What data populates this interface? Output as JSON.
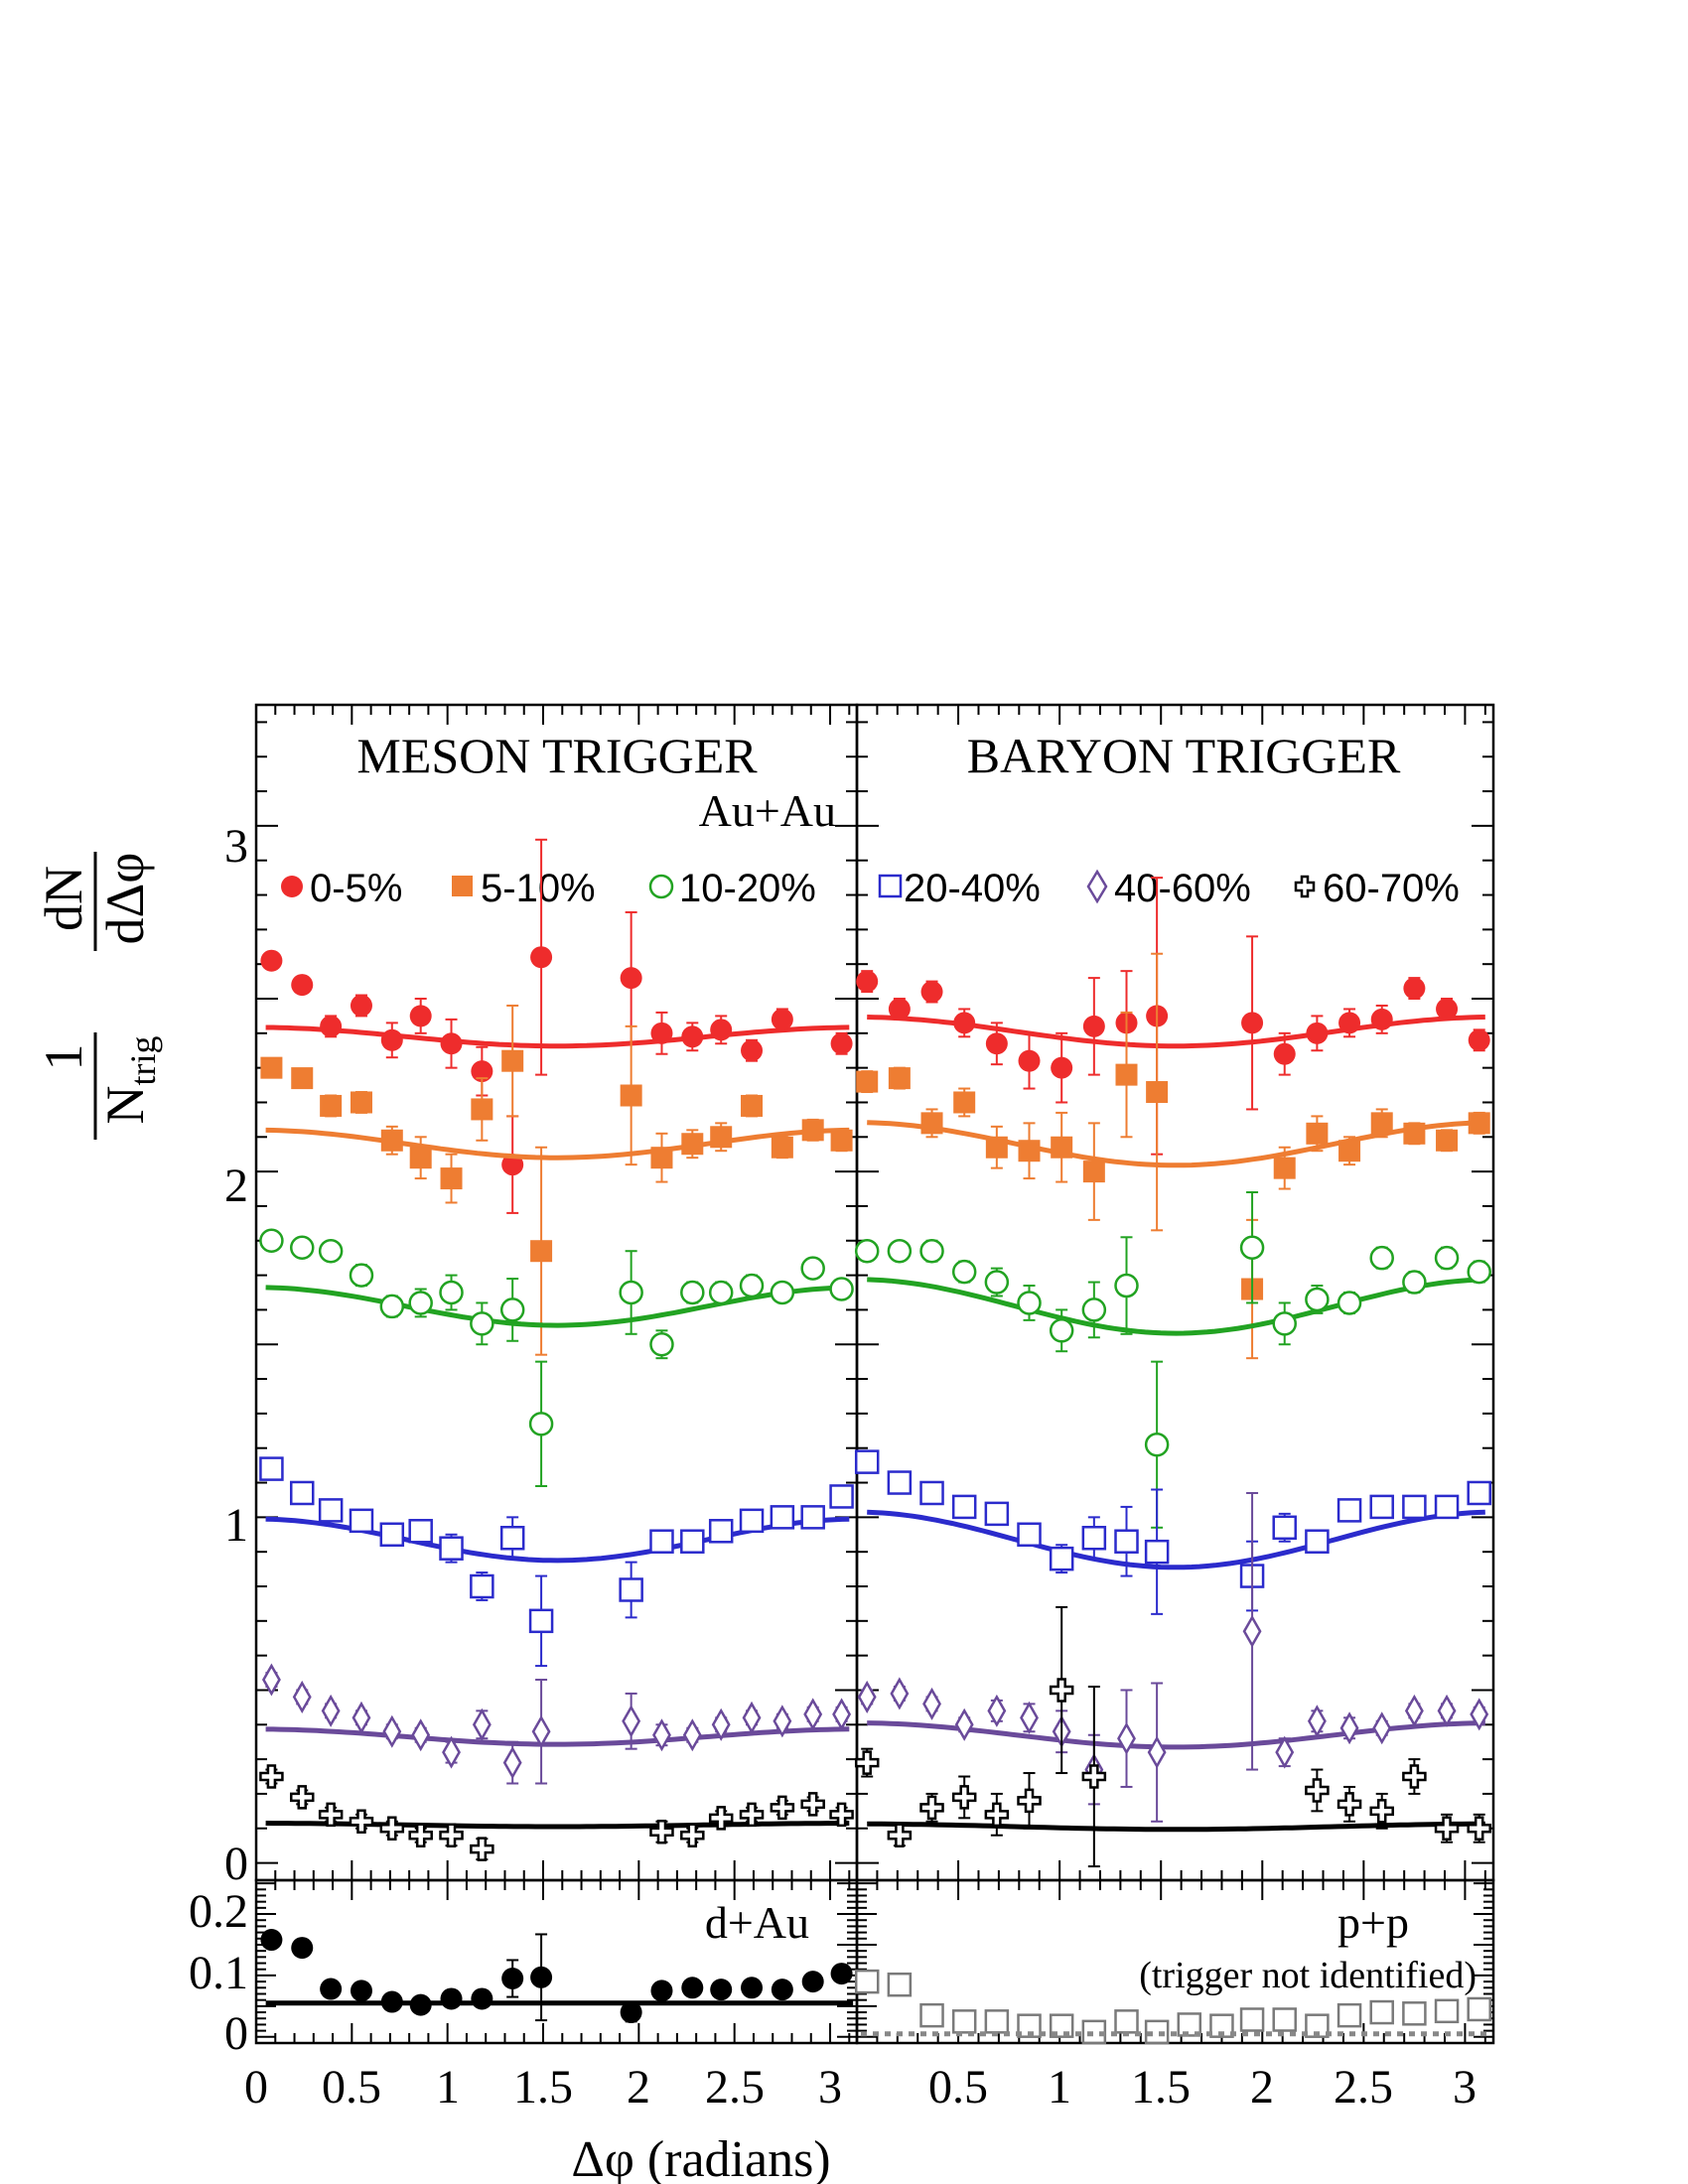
{
  "figure": {
    "y_axis_label": {
      "num1": "1",
      "den1": "N",
      "den1_sub": "trig",
      "num2": "dN",
      "den2": "dΔφ"
    },
    "x_axis_label": "Δφ (radians)",
    "main_y_ticks": [
      "0",
      "1",
      "2",
      "3"
    ],
    "small_y_ticks": [
      "0",
      "0.1",
      "0.2"
    ],
    "x_ticks_left": [
      "0",
      "0.5",
      "1",
      "1.5",
      "2",
      "2.5",
      "3"
    ],
    "x_ticks_right": [
      "0.5",
      "1",
      "1.5",
      "2",
      "2.5",
      "3"
    ]
  },
  "panels": {
    "meson_title": "MESON TRIGGER",
    "baryon_title": "BARYON TRIGGER",
    "auau_label": "Au+Au",
    "dau_label": "d+Au",
    "pp_label": "p+p",
    "pp_sublabel": "(trigger not identified)"
  },
  "legend": [
    {
      "label": "0-5%",
      "color": "#ee2c2c",
      "marker": "filled-circle"
    },
    {
      "label": "5-10%",
      "color": "#ee7d32",
      "marker": "filled-square"
    },
    {
      "label": "10-20%",
      "color": "#22a322",
      "marker": "open-circle"
    },
    {
      "label": "20-40%",
      "color": "#2b2bcc",
      "marker": "open-square"
    },
    {
      "label": "40-60%",
      "color": "#6a4a9a",
      "marker": "open-diamond"
    },
    {
      "label": "60-70%",
      "color": "#000000",
      "marker": "open-cross"
    }
  ],
  "chart_data": [
    {
      "type": "scatter",
      "panel": "meson-auau",
      "title": "MESON TRIGGER",
      "xlabel": "Δφ (radians)",
      "ylabel": "1/N_trig dN/dΔφ",
      "xlim": [
        0,
        3.14
      ],
      "ylim": [
        -0.05,
        3.35
      ],
      "x": [
        0.08,
        0.24,
        0.39,
        0.55,
        0.71,
        0.86,
        1.02,
        1.18,
        1.34,
        1.49,
        1.96,
        2.12,
        2.28,
        2.43,
        2.59,
        2.75,
        2.91,
        3.06
      ],
      "series": [
        {
          "name": "0-5%",
          "color": "#ee2c2c",
          "marker": "filled-circle",
          "values": [
            2.61,
            2.54,
            2.42,
            2.48,
            2.38,
            2.45,
            2.37,
            2.29,
            2.02,
            2.62,
            2.56,
            2.4,
            2.39,
            2.41,
            2.35,
            2.44,
            null,
            2.37
          ],
          "errors": [
            0.02,
            0.02,
            0.03,
            0.03,
            0.05,
            0.05,
            0.07,
            0.07,
            0.14,
            0.34,
            0.19,
            0.06,
            0.04,
            0.04,
            0.03,
            0.03,
            null,
            0.03
          ],
          "fit": {
            "a": 2.39,
            "b": 0.027
          }
        },
        {
          "name": "5-10%",
          "color": "#ee7d32",
          "marker": "filled-square",
          "values": [
            2.3,
            2.27,
            2.19,
            2.2,
            2.09,
            2.04,
            1.98,
            2.18,
            2.32,
            1.77,
            2.22,
            2.04,
            2.08,
            2.1,
            2.19,
            2.07,
            2.12,
            2.09
          ],
          "errors": [
            0.02,
            0.02,
            0.03,
            0.03,
            0.04,
            0.06,
            0.07,
            0.09,
            0.16,
            0.3,
            0.2,
            0.07,
            0.04,
            0.04,
            0.03,
            0.03,
            0.03,
            0.03
          ],
          "fit": {
            "a": 2.08,
            "b": 0.04
          }
        },
        {
          "name": "10-20%",
          "color": "#22a322",
          "marker": "open-circle",
          "values": [
            1.8,
            1.78,
            1.77,
            1.7,
            1.61,
            1.62,
            1.65,
            1.56,
            1.6,
            1.27,
            1.65,
            1.5,
            1.65,
            1.65,
            1.67,
            1.65,
            1.72,
            1.66
          ],
          "errors": [
            0.02,
            0.02,
            0.02,
            0.03,
            0.03,
            0.04,
            0.05,
            0.06,
            0.09,
            0.18,
            0.12,
            0.04,
            0.03,
            0.03,
            0.03,
            0.02,
            0.02,
            0.02
          ],
          "fit": {
            "a": 1.61,
            "b": 0.055
          }
        },
        {
          "name": "20-40%",
          "color": "#2b2bcc",
          "marker": "open-square",
          "values": [
            1.14,
            1.07,
            1.02,
            0.99,
            0.95,
            0.96,
            0.91,
            0.8,
            0.94,
            0.7,
            0.79,
            0.93,
            0.93,
            0.96,
            0.99,
            1.0,
            1.0,
            1.06
          ],
          "errors": [
            0.02,
            0.02,
            0.02,
            0.02,
            0.02,
            0.03,
            0.04,
            0.04,
            0.06,
            0.13,
            0.08,
            0.03,
            0.02,
            0.02,
            0.02,
            0.02,
            0.02,
            0.02
          ],
          "fit": {
            "a": 0.935,
            "b": 0.06
          }
        },
        {
          "name": "40-60%",
          "color": "#6a4a9a",
          "marker": "open-diamond",
          "values": [
            0.53,
            0.48,
            0.44,
            0.42,
            0.38,
            0.37,
            0.32,
            0.4,
            0.29,
            0.38,
            0.41,
            0.37,
            0.37,
            0.4,
            0.42,
            0.41,
            0.43,
            0.43
          ],
          "errors": [
            0.02,
            0.02,
            0.02,
            0.02,
            0.02,
            0.02,
            0.03,
            0.04,
            0.06,
            0.15,
            0.08,
            0.03,
            0.02,
            0.02,
            0.02,
            0.02,
            0.02,
            0.02
          ],
          "fit": {
            "a": 0.365,
            "b": 0.022
          }
        },
        {
          "name": "60-70%",
          "color": "#000000",
          "marker": "open-cross",
          "values": [
            0.25,
            0.19,
            0.14,
            0.12,
            0.1,
            0.08,
            0.08,
            0.04,
            null,
            null,
            null,
            0.09,
            0.08,
            0.13,
            0.14,
            0.16,
            0.17,
            0.14
          ],
          "errors": [
            0.02,
            0.02,
            0.02,
            0.02,
            0.02,
            0.02,
            0.03,
            0.03,
            null,
            null,
            null,
            0.03,
            0.02,
            0.02,
            0.02,
            0.02,
            0.02,
            0.02
          ],
          "fit": {
            "a": 0.11,
            "b": 0.005
          }
        }
      ]
    },
    {
      "type": "scatter",
      "panel": "baryon-auau",
      "title": "BARYON TRIGGER",
      "xlabel": "Δφ (radians)",
      "xlim": [
        0,
        3.14
      ],
      "ylim": [
        -0.05,
        3.35
      ],
      "x": [
        0.05,
        0.21,
        0.37,
        0.53,
        0.69,
        0.85,
        1.01,
        1.17,
        1.33,
        1.48,
        1.95,
        2.11,
        2.27,
        2.43,
        2.59,
        2.75,
        2.91,
        3.07
      ],
      "series": [
        {
          "name": "0-5%",
          "color": "#ee2c2c",
          "marker": "filled-circle",
          "values": [
            2.55,
            2.47,
            2.52,
            2.43,
            2.37,
            2.32,
            2.3,
            2.42,
            2.43,
            2.45,
            2.43,
            2.34,
            2.4,
            2.43,
            2.44,
            2.53,
            2.47,
            2.38
          ],
          "errors": [
            0.03,
            0.03,
            0.03,
            0.04,
            0.06,
            0.08,
            0.1,
            0.14,
            0.15,
            0.4,
            0.25,
            0.06,
            0.05,
            0.04,
            0.04,
            0.03,
            0.03,
            0.03
          ],
          "fit": {
            "a": 2.405,
            "b": 0.042
          }
        },
        {
          "name": "5-10%",
          "color": "#ee7d32",
          "marker": "filled-square",
          "values": [
            2.26,
            2.27,
            2.14,
            2.2,
            2.07,
            2.06,
            2.07,
            2.0,
            2.28,
            2.23,
            1.66,
            2.01,
            2.11,
            2.06,
            2.14,
            2.11,
            2.09,
            2.14
          ],
          "errors": [
            0.03,
            0.03,
            0.04,
            0.04,
            0.06,
            0.08,
            0.1,
            0.14,
            0.18,
            0.4,
            0.2,
            0.06,
            0.05,
            0.04,
            0.04,
            0.03,
            0.03,
            0.03
          ],
          "fit": {
            "a": 2.08,
            "b": 0.062
          }
        },
        {
          "name": "10-20%",
          "color": "#22a322",
          "marker": "open-circle",
          "values": [
            1.77,
            1.77,
            1.77,
            1.71,
            1.68,
            1.62,
            1.54,
            1.6,
            1.67,
            1.21,
            1.78,
            1.56,
            1.63,
            1.62,
            1.75,
            1.68,
            1.75,
            1.71
          ],
          "errors": [
            0.02,
            0.02,
            0.03,
            0.03,
            0.04,
            0.05,
            0.06,
            0.08,
            0.14,
            0.24,
            0.16,
            0.06,
            0.04,
            0.03,
            0.03,
            0.03,
            0.03,
            0.03
          ],
          "fit": {
            "a": 1.61,
            "b": 0.078
          }
        },
        {
          "name": "20-40%",
          "color": "#2b2bcc",
          "marker": "open-square",
          "values": [
            1.16,
            1.1,
            1.07,
            1.03,
            1.01,
            0.95,
            0.88,
            0.94,
            0.93,
            0.9,
            0.83,
            0.97,
            0.93,
            1.02,
            1.03,
            1.03,
            1.03,
            1.07
          ],
          "errors": [
            0.02,
            0.02,
            0.02,
            0.02,
            0.03,
            0.03,
            0.04,
            0.06,
            0.1,
            0.18,
            0.1,
            0.04,
            0.03,
            0.02,
            0.02,
            0.02,
            0.02,
            0.02
          ],
          "fit": {
            "a": 0.935,
            "b": 0.08
          }
        },
        {
          "name": "40-60%",
          "color": "#6a4a9a",
          "marker": "open-diamond",
          "values": [
            0.48,
            0.49,
            0.46,
            0.4,
            0.44,
            0.42,
            0.38,
            0.27,
            0.36,
            0.32,
            0.67,
            0.32,
            0.41,
            0.39,
            0.39,
            0.44,
            0.44,
            0.43
          ],
          "errors": [
            0.02,
            0.02,
            0.02,
            0.02,
            0.03,
            0.04,
            0.06,
            0.1,
            0.14,
            0.2,
            0.4,
            0.04,
            0.03,
            0.03,
            0.02,
            0.02,
            0.02,
            0.02
          ],
          "fit": {
            "a": 0.37,
            "b": 0.035
          }
        },
        {
          "name": "60-70%",
          "color": "#000000",
          "marker": "open-cross",
          "values": [
            0.29,
            0.08,
            0.16,
            0.19,
            0.14,
            0.18,
            0.5,
            0.25,
            null,
            null,
            null,
            null,
            0.21,
            0.17,
            0.15,
            0.25,
            0.1,
            0.1
          ],
          "errors": [
            0.04,
            0.03,
            0.04,
            0.06,
            0.06,
            0.08,
            0.24,
            0.26,
            null,
            null,
            null,
            null,
            0.06,
            0.05,
            0.05,
            0.05,
            0.04,
            0.04
          ],
          "fit": {
            "a": 0.105,
            "b": 0.008
          }
        }
      ]
    },
    {
      "type": "scatter",
      "panel": "meson-dau",
      "title": "d+Au",
      "xlim": [
        0,
        3.14
      ],
      "ylim": [
        -0.01,
        0.255
      ],
      "x": [
        0.08,
        0.24,
        0.39,
        0.55,
        0.71,
        0.86,
        1.02,
        1.18,
        1.34,
        1.49,
        1.96,
        2.12,
        2.28,
        2.43,
        2.59,
        2.75,
        2.91,
        3.06
      ],
      "series": [
        {
          "name": "d+Au",
          "color": "#000000",
          "marker": "filled-circle",
          "values": [
            0.158,
            0.145,
            0.078,
            0.075,
            0.057,
            0.052,
            0.062,
            0.062,
            0.095,
            0.097,
            0.04,
            0.075,
            0.08,
            0.077,
            0.08,
            0.077,
            0.09,
            0.103
          ],
          "errors": [
            0.005,
            0.005,
            0.005,
            0.005,
            0.005,
            0.006,
            0.008,
            0.012,
            0.03,
            0.07,
            0.015,
            0.01,
            0.006,
            0.005,
            0.005,
            0.005,
            0.005,
            0.006
          ]
        },
        {
          "name": "",
          "type": "line",
          "values_flat": 0.055
        }
      ]
    },
    {
      "type": "scatter",
      "panel": "baryon-pp",
      "title": "p+p",
      "subtitle": "(trigger not identified)",
      "xlim": [
        0,
        3.14
      ],
      "ylim": [
        -0.01,
        0.255
      ],
      "x": [
        0.05,
        0.21,
        0.37,
        0.53,
        0.69,
        0.85,
        1.01,
        1.17,
        1.33,
        1.48,
        1.64,
        1.8,
        1.95,
        2.11,
        2.27,
        2.43,
        2.59,
        2.75,
        2.91,
        3.07
      ],
      "series": [
        {
          "name": "p+p",
          "color": "#7a7a7a",
          "marker": "open-square",
          "values": [
            0.09,
            0.085,
            0.035,
            0.025,
            0.025,
            0.018,
            0.018,
            0.008,
            0.025,
            0.008,
            0.02,
            0.018,
            0.028,
            0.028,
            0.018,
            0.035,
            0.04,
            0.038,
            0.042,
            0.045
          ]
        },
        {
          "name": "",
          "type": "dotted-line",
          "values_flat": 0.005
        }
      ]
    }
  ]
}
